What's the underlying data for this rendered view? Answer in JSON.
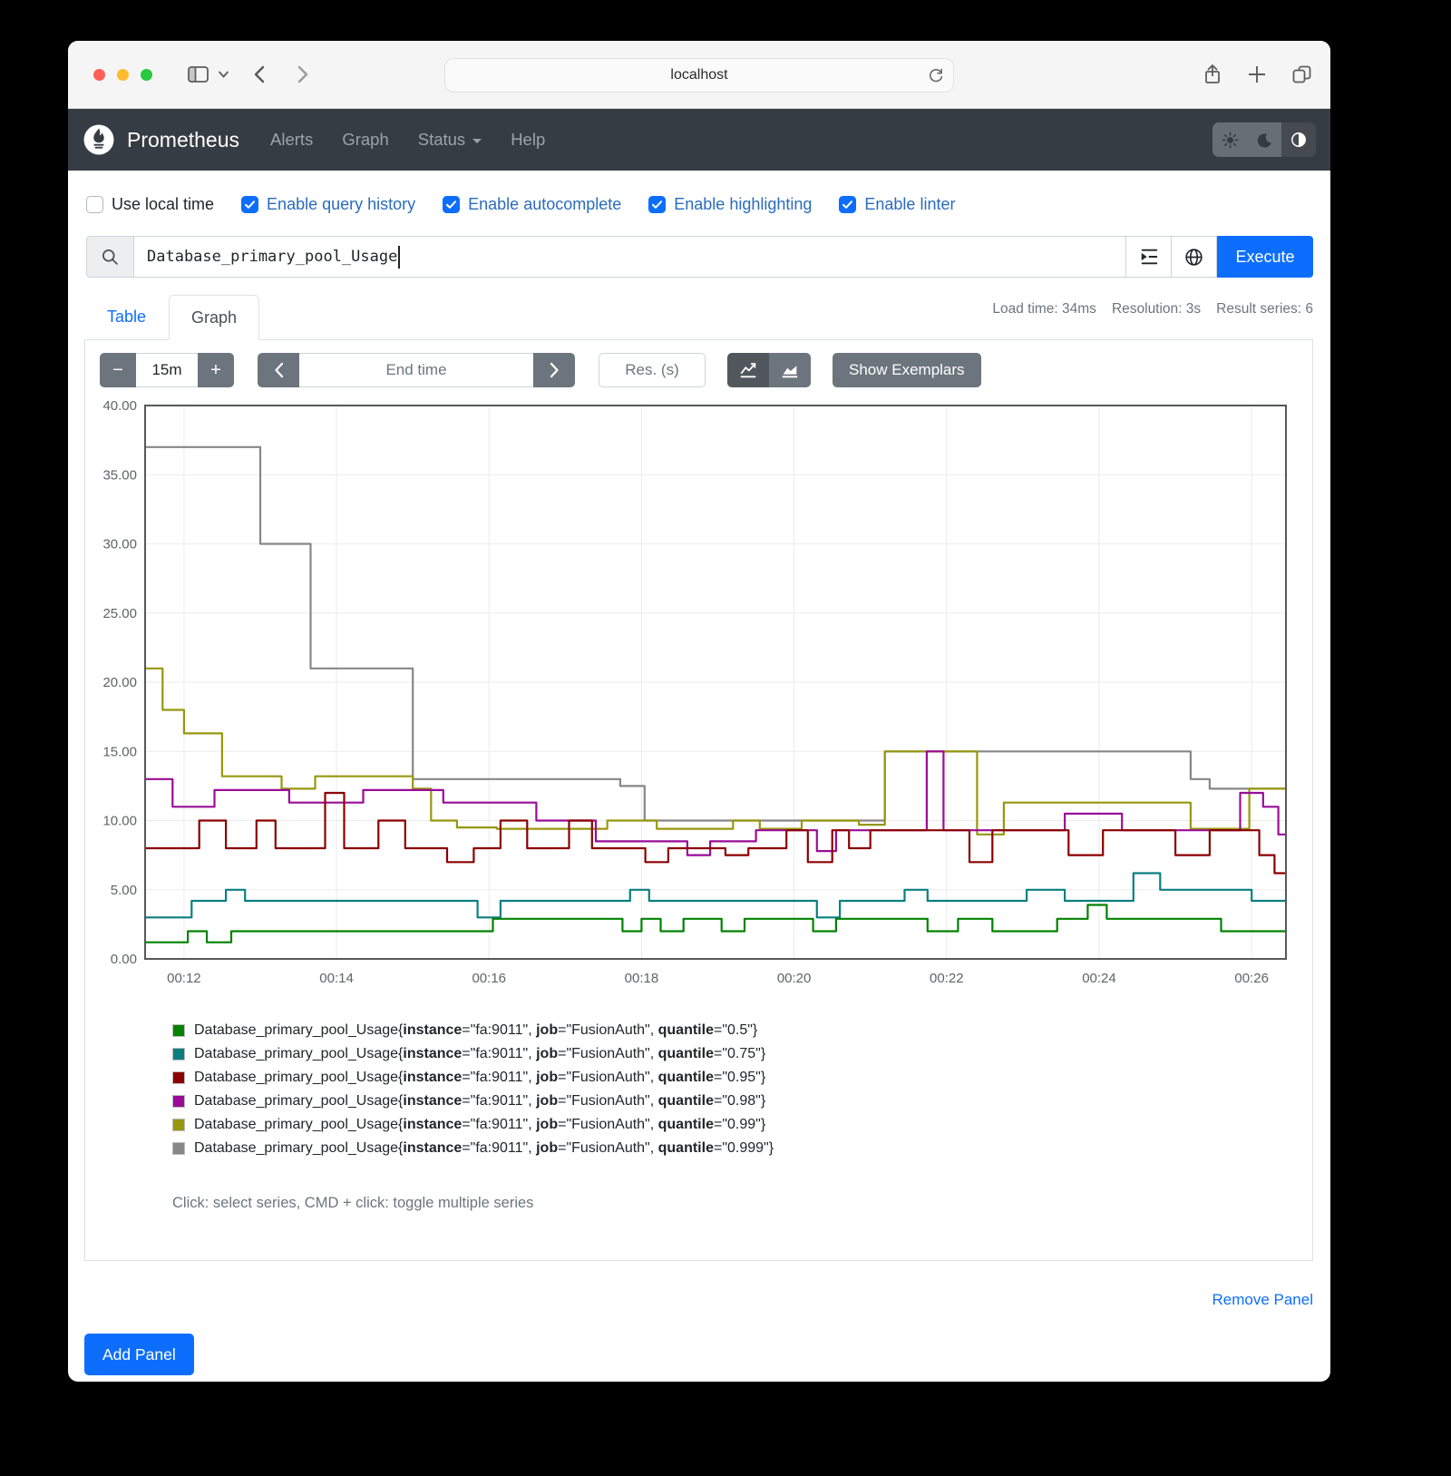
{
  "theme": {
    "accent": "#0d6efd",
    "navbar_bg": "#363c44",
    "checked_label": "#2a6cbc"
  },
  "browser": {
    "url": "localhost"
  },
  "navbar": {
    "brand": "Prometheus",
    "links": [
      "Alerts",
      "Graph",
      "Status",
      "Help"
    ]
  },
  "toggles": [
    {
      "label": "Use local time",
      "checked": false
    },
    {
      "label": "Enable query history",
      "checked": true
    },
    {
      "label": "Enable autocomplete",
      "checked": true
    },
    {
      "label": "Enable highlighting",
      "checked": true
    },
    {
      "label": "Enable linter",
      "checked": true
    }
  ],
  "query": {
    "value": "Database_primary_pool_Usage",
    "execute_label": "Execute"
  },
  "stats": {
    "load_time": "Load time: 34ms",
    "resolution": "Resolution: 3s",
    "result_series": "Result series: 6"
  },
  "tabs": [
    {
      "label": "Table"
    },
    {
      "label": "Graph"
    }
  ],
  "graph_controls": {
    "minus_label": "−",
    "duration": "15m",
    "plus_label": "+",
    "end_time_placeholder": "End time",
    "res_placeholder": "Res. (s)",
    "show_exemplars": "Show Exemplars"
  },
  "chart_data": {
    "type": "line",
    "step": true,
    "title": "",
    "xlabel": "",
    "ylabel": "",
    "ylim": [
      0,
      40
    ],
    "x_range_minutes": [
      11.49,
      26.45
    ],
    "grid": true,
    "legend_position": "bottom-left",
    "y_ticks": [
      {
        "v": 0,
        "label": "0.00"
      },
      {
        "v": 5,
        "label": "5.00"
      },
      {
        "v": 10,
        "label": "10.00"
      },
      {
        "v": 15,
        "label": "15.00"
      },
      {
        "v": 20,
        "label": "20.00"
      },
      {
        "v": 25,
        "label": "25.00"
      },
      {
        "v": 30,
        "label": "30.00"
      },
      {
        "v": 35,
        "label": "35.00"
      },
      {
        "v": 40,
        "label": "40.00"
      }
    ],
    "x_ticks": [
      {
        "t": 12,
        "label": "00:12"
      },
      {
        "t": 14,
        "label": "00:14"
      },
      {
        "t": 16,
        "label": "00:16"
      },
      {
        "t": 18,
        "label": "00:18"
      },
      {
        "t": 20,
        "label": "00:20"
      },
      {
        "t": 22,
        "label": "00:22"
      },
      {
        "t": 24,
        "label": "00:24"
      },
      {
        "t": 26,
        "label": "00:26"
      }
    ],
    "series": [
      {
        "name": "quantile 0.5",
        "color": "#028202",
        "points": [
          [
            11.49,
            1.2
          ],
          [
            12.05,
            2
          ],
          [
            12.3,
            1.2
          ],
          [
            12.62,
            2
          ],
          [
            16.05,
            2.9
          ],
          [
            17.75,
            2
          ],
          [
            18.0,
            2.9
          ],
          [
            18.25,
            2
          ],
          [
            18.55,
            2.9
          ],
          [
            19.05,
            2
          ],
          [
            19.35,
            2.9
          ],
          [
            20.25,
            2
          ],
          [
            20.55,
            2.9
          ],
          [
            21.75,
            2
          ],
          [
            22.15,
            2.9
          ],
          [
            22.6,
            2
          ],
          [
            23.45,
            2.9
          ],
          [
            23.85,
            3.9
          ],
          [
            24.1,
            2.9
          ],
          [
            25.6,
            2
          ]
        ]
      },
      {
        "name": "quantile 0.75",
        "color": "#0a7f80",
        "points": [
          [
            11.49,
            3
          ],
          [
            12.1,
            4.2
          ],
          [
            12.55,
            5
          ],
          [
            12.8,
            4.2
          ],
          [
            15.85,
            3
          ],
          [
            16.15,
            4.2
          ],
          [
            17.85,
            5
          ],
          [
            18.1,
            4.2
          ],
          [
            20.3,
            3
          ],
          [
            20.6,
            4.2
          ],
          [
            21.45,
            5
          ],
          [
            21.75,
            4.2
          ],
          [
            23.05,
            5
          ],
          [
            23.55,
            4.2
          ],
          [
            24.45,
            6.2
          ],
          [
            24.8,
            5
          ],
          [
            26.0,
            4.2
          ]
        ]
      },
      {
        "name": "quantile 0.95",
        "color": "#8b0000",
        "points": [
          [
            11.49,
            8
          ],
          [
            12.2,
            10
          ],
          [
            12.55,
            8
          ],
          [
            12.95,
            10
          ],
          [
            13.2,
            8
          ],
          [
            13.85,
            12
          ],
          [
            14.1,
            8
          ],
          [
            14.55,
            10
          ],
          [
            14.9,
            8
          ],
          [
            15.45,
            7
          ],
          [
            15.8,
            8
          ],
          [
            16.15,
            10
          ],
          [
            16.5,
            8
          ],
          [
            17.05,
            10
          ],
          [
            17.35,
            8
          ],
          [
            18.05,
            7
          ],
          [
            18.35,
            8
          ],
          [
            19.1,
            7.5
          ],
          [
            19.4,
            8
          ],
          [
            19.9,
            9.3
          ],
          [
            20.18,
            7
          ],
          [
            20.5,
            9.3
          ],
          [
            20.72,
            8
          ],
          [
            21.0,
            9.3
          ],
          [
            22.3,
            7
          ],
          [
            22.6,
            9.3
          ],
          [
            23.6,
            7.5
          ],
          [
            24.05,
            9.3
          ],
          [
            25.0,
            7.5
          ],
          [
            25.45,
            9.3
          ],
          [
            26.1,
            7.5
          ],
          [
            26.3,
            6.2
          ]
        ]
      },
      {
        "name": "quantile 0.98",
        "color": "#990c98",
        "points": [
          [
            11.49,
            13
          ],
          [
            11.85,
            11
          ],
          [
            12.4,
            12.2
          ],
          [
            13.38,
            11.3
          ],
          [
            14.35,
            12.2
          ],
          [
            15.4,
            11.3
          ],
          [
            16.62,
            10
          ],
          [
            17.4,
            8.5
          ],
          [
            18.6,
            7.5
          ],
          [
            18.9,
            8.5
          ],
          [
            19.5,
            9.3
          ],
          [
            20.3,
            7.8
          ],
          [
            20.55,
            9.3
          ],
          [
            21.74,
            15
          ],
          [
            21.96,
            9.3
          ],
          [
            23.55,
            10.5
          ],
          [
            24.3,
            9.3
          ],
          [
            25.85,
            12
          ],
          [
            26.15,
            11
          ],
          [
            26.35,
            9
          ]
        ]
      },
      {
        "name": "quantile 0.99",
        "color": "#97970f",
        "points": [
          [
            11.49,
            21
          ],
          [
            11.72,
            18
          ],
          [
            12.0,
            16.3
          ],
          [
            12.5,
            13.2
          ],
          [
            13.28,
            12.3
          ],
          [
            13.72,
            13.2
          ],
          [
            15.0,
            12.3
          ],
          [
            15.24,
            10
          ],
          [
            15.58,
            9.5
          ],
          [
            16.1,
            9.4
          ],
          [
            17.55,
            10
          ],
          [
            18.2,
            9.4
          ],
          [
            19.2,
            10
          ],
          [
            19.55,
            9.4
          ],
          [
            20.1,
            10
          ],
          [
            20.85,
            9.7
          ],
          [
            21.19,
            15
          ],
          [
            22.4,
            9
          ],
          [
            22.75,
            11.3
          ],
          [
            25.2,
            9.4
          ],
          [
            25.97,
            12.3
          ]
        ]
      },
      {
        "name": "quantile 0.999",
        "color": "#878787",
        "points": [
          [
            11.49,
            37
          ],
          [
            13.0,
            30
          ],
          [
            13.66,
            21
          ],
          [
            15.0,
            13
          ],
          [
            17.72,
            12.5
          ],
          [
            18.04,
            10
          ],
          [
            21.19,
            15
          ],
          [
            25.2,
            13
          ],
          [
            25.45,
            12.3
          ]
        ]
      }
    ]
  },
  "legend": {
    "metric": "Database_primary_pool_Usage",
    "labels": {
      "instance": "fa:9011",
      "job": "FusionAuth"
    },
    "series": [
      {
        "quantile": "0.5",
        "color": "#028202"
      },
      {
        "quantile": "0.75",
        "color": "#0a7f80"
      },
      {
        "quantile": "0.95",
        "color": "#8b0000"
      },
      {
        "quantile": "0.98",
        "color": "#990c98"
      },
      {
        "quantile": "0.99",
        "color": "#97970f"
      },
      {
        "quantile": "0.999",
        "color": "#878787"
      }
    ],
    "hint": "Click: select series, CMD + click: toggle multiple series"
  },
  "footer": {
    "remove_panel": "Remove Panel",
    "add_panel": "Add Panel"
  }
}
